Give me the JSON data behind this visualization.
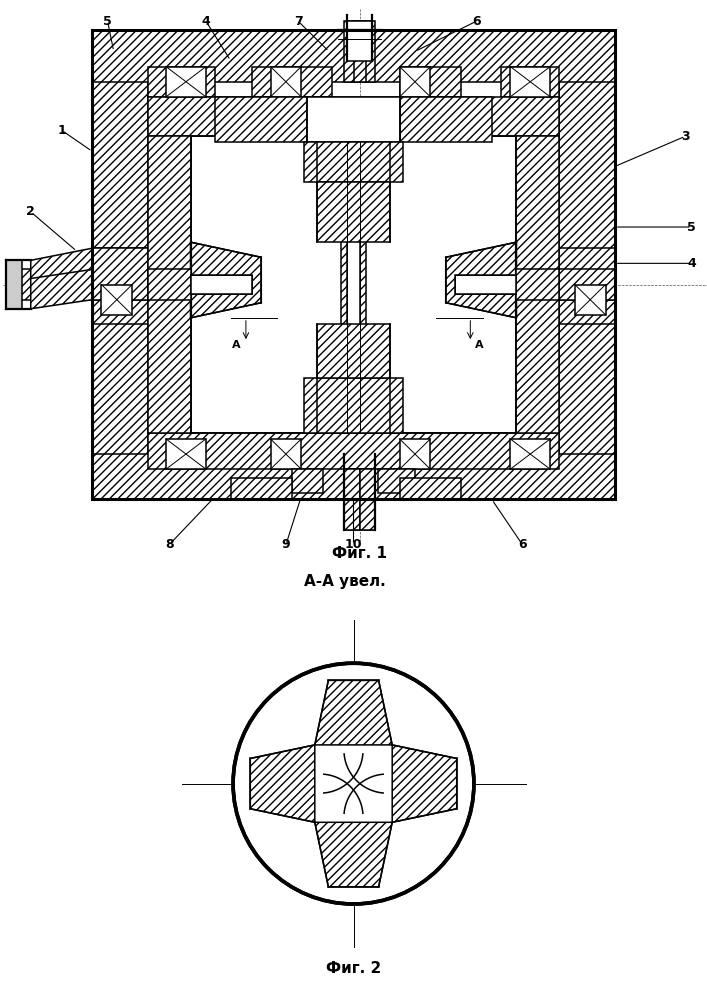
{
  "fig1_label": "Фиг. 1",
  "fig2_label": "Фиг. 2",
  "fig2_title": "А-А увел.",
  "bg_color": "#ffffff",
  "line_color": "#000000",
  "white": "#ffffff",
  "gray": "#888888"
}
